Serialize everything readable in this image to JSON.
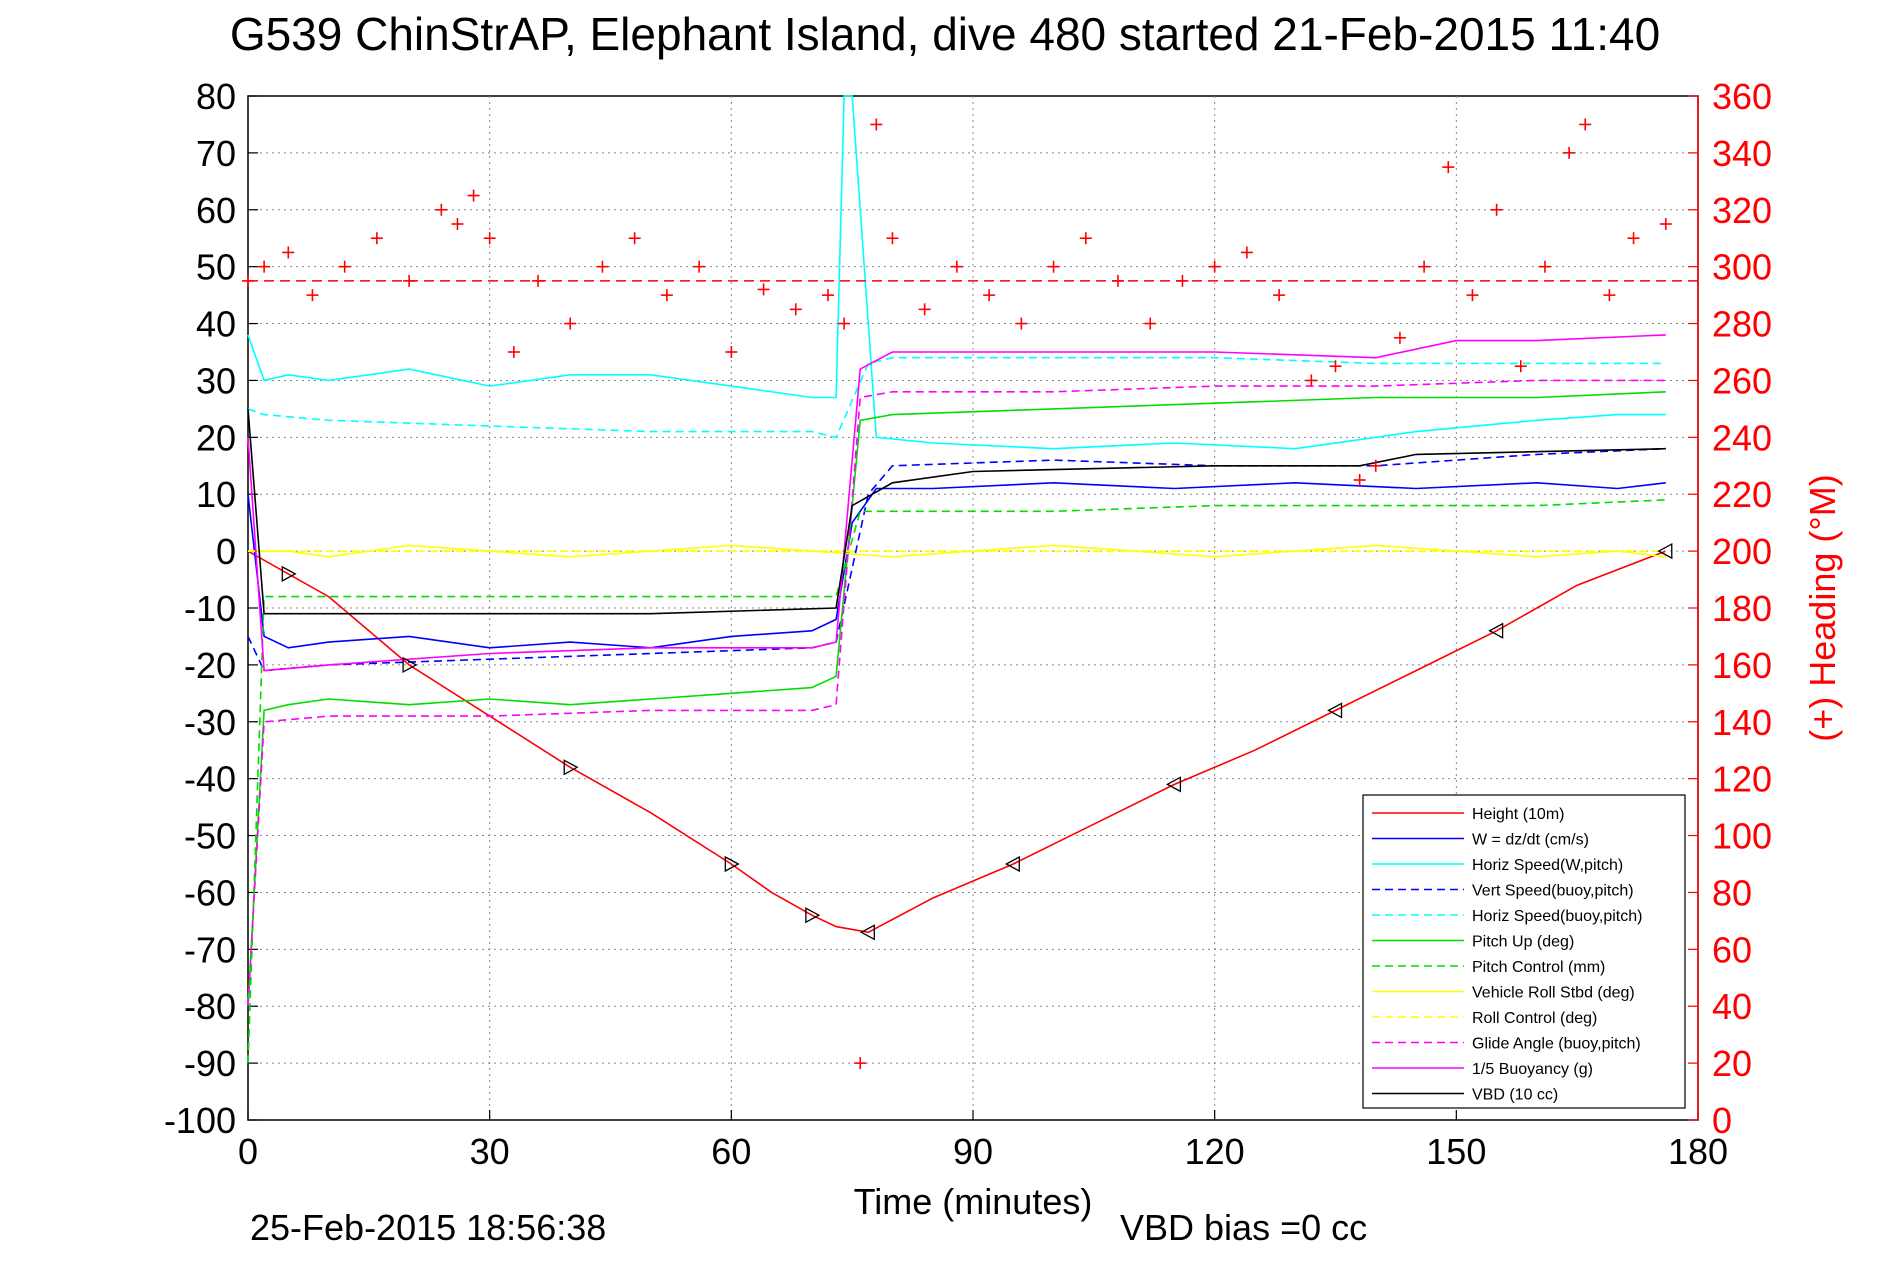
{
  "figure": {
    "title": "G539 ChinStrAP, Elephant Island, dive 480 started 21-Feb-2015 11:40",
    "timestamp": "25-Feb-2015 18:56:38",
    "vbd_bias": "VBD bias =0 cc"
  },
  "chart_data": {
    "type": "line",
    "title": "G539 ChinStrAP, Elephant Island, dive 480 started 21-Feb-2015 11:40",
    "xlabel": "Time (minutes)",
    "ylabel_left": "",
    "ylabel_right": "(+) Heading (°M)",
    "xlim": [
      0,
      180
    ],
    "ylim_left": [
      -100,
      80
    ],
    "ylim_right": [
      0,
      360
    ],
    "x_ticks": [
      "0",
      "30",
      "60",
      "90",
      "120",
      "150",
      "180"
    ],
    "y_ticks_left": [
      "80",
      "70",
      "60",
      "50",
      "40",
      "30",
      "20",
      "10",
      "0",
      "-10",
      "-20",
      "-30",
      "-40",
      "-50",
      "-60",
      "-70",
      "-80",
      "-90",
      "-100"
    ],
    "y_ticks_right": [
      "360",
      "340",
      "320",
      "300",
      "280",
      "260",
      "240",
      "220",
      "200",
      "180",
      "160",
      "140",
      "120",
      "100",
      "80",
      "60",
      "40",
      "20",
      "0"
    ],
    "grid": true,
    "legend_position": "bottom-right",
    "colors": {
      "red": "#ff0000",
      "blue": "#0000ff",
      "cyan": "#00ffff",
      "green": "#00dd00",
      "yellow": "#ffff00",
      "magenta": "#ff00ff",
      "black": "#000000"
    },
    "series": [
      {
        "name": "Height (10m)",
        "color": "#ff0000",
        "dash": "solid",
        "x": [
          0,
          5,
          10,
          20,
          30,
          40,
          50,
          60,
          65,
          70,
          73,
          77,
          85,
          95,
          105,
          115,
          125,
          135,
          145,
          155,
          165,
          176
        ],
        "y": [
          0,
          -4,
          -8,
          -20,
          -29,
          -38,
          -46,
          -55,
          -60,
          -64,
          -66,
          -67,
          -61,
          -55,
          -48,
          -41,
          -35,
          -28,
          -21,
          -14,
          -6,
          0
        ]
      },
      {
        "name": "W = dz/dt (cm/s)",
        "color": "#0000ff",
        "dash": "solid",
        "x": [
          0,
          2,
          5,
          10,
          20,
          30,
          40,
          50,
          60,
          70,
          73,
          75,
          78,
          85,
          100,
          115,
          130,
          145,
          160,
          170,
          176
        ],
        "y": [
          10,
          -15,
          -17,
          -16,
          -15,
          -17,
          -16,
          -17,
          -15,
          -14,
          -12,
          5,
          11,
          11,
          12,
          11,
          12,
          11,
          12,
          11,
          12
        ]
      },
      {
        "name": "Horiz Speed(W,pitch)",
        "color": "#00ffff",
        "dash": "solid",
        "x": [
          0,
          2,
          5,
          10,
          20,
          30,
          40,
          50,
          60,
          70,
          73,
          74,
          75,
          78,
          85,
          100,
          115,
          130,
          145,
          160,
          170,
          176
        ],
        "y": [
          38,
          30,
          31,
          30,
          32,
          29,
          31,
          31,
          29,
          27,
          27,
          80,
          80,
          20,
          19,
          18,
          19,
          18,
          21,
          23,
          24,
          24
        ]
      },
      {
        "name": "Vert Speed(buoy,pitch)",
        "color": "#0000ff",
        "dash": "dashed",
        "x": [
          0,
          2,
          10,
          30,
          50,
          70,
          73,
          77,
          80,
          100,
          120,
          140,
          160,
          176
        ],
        "y": [
          -15,
          -21,
          -20,
          -19,
          -18,
          -17,
          -16,
          10,
          15,
          16,
          15,
          15,
          17,
          18
        ]
      },
      {
        "name": "Horiz Speed(buoy,pitch)",
        "color": "#00ffff",
        "dash": "dashed",
        "x": [
          0,
          2,
          10,
          30,
          50,
          70,
          73,
          77,
          80,
          100,
          120,
          140,
          160,
          176
        ],
        "y": [
          25,
          24,
          23,
          22,
          21,
          21,
          20,
          33,
          34,
          34,
          34,
          33,
          33,
          33
        ]
      },
      {
        "name": "Pitch Up (deg)",
        "color": "#00dd00",
        "dash": "solid",
        "x": [
          0,
          2,
          5,
          10,
          20,
          30,
          40,
          50,
          60,
          70,
          73,
          76,
          80,
          100,
          120,
          140,
          160,
          176
        ],
        "y": [
          -80,
          -28,
          -27,
          -26,
          -27,
          -26,
          -27,
          -26,
          -25,
          -24,
          -22,
          23,
          24,
          25,
          26,
          27,
          27,
          28
        ]
      },
      {
        "name": "Pitch Control (mm)",
        "color": "#00dd00",
        "dash": "dashed",
        "x": [
          0,
          2,
          10,
          30,
          50,
          70,
          73,
          76,
          80,
          100,
          120,
          140,
          160,
          176
        ],
        "y": [
          -90,
          -8,
          -8,
          -8,
          -8,
          -8,
          -8,
          7,
          7,
          7,
          8,
          8,
          8,
          9
        ]
      },
      {
        "name": "Vehicle Roll Stbd (deg)",
        "color": "#ffff00",
        "dash": "solid",
        "x": [
          0,
          5,
          10,
          20,
          30,
          40,
          50,
          60,
          70,
          80,
          90,
          100,
          110,
          120,
          130,
          140,
          150,
          160,
          170,
          176
        ],
        "y": [
          0,
          0,
          -1,
          1,
          0,
          -1,
          0,
          1,
          0,
          -1,
          0,
          1,
          0,
          -1,
          0,
          1,
          0,
          -1,
          0,
          -1
        ]
      },
      {
        "name": "Roll Control (deg)",
        "color": "#ffff00",
        "dash": "dashed",
        "x": [
          0,
          10,
          30,
          60,
          90,
          120,
          150,
          176
        ],
        "y": [
          0,
          0,
          0,
          0,
          0,
          0,
          0,
          0
        ]
      },
      {
        "name": "Glide Angle (buoy,pitch)",
        "color": "#ff00ff",
        "dash": "dashed",
        "x": [
          0,
          2,
          10,
          30,
          50,
          70,
          73,
          76,
          80,
          100,
          120,
          140,
          160,
          176
        ],
        "y": [
          -80,
          -30,
          -29,
          -29,
          -28,
          -28,
          -27,
          27,
          28,
          28,
          29,
          29,
          30,
          30
        ]
      },
      {
        "name": "1/5 Buoyancy (g)",
        "color": "#ff00ff",
        "dash": "solid",
        "x": [
          0,
          2,
          10,
          30,
          50,
          70,
          73,
          76,
          80,
          100,
          120,
          140,
          150,
          160,
          176
        ],
        "y": [
          20,
          -21,
          -20,
          -18,
          -17,
          -17,
          -16,
          32,
          35,
          35,
          35,
          34,
          37,
          37,
          38
        ]
      },
      {
        "name": "VBD (10 cc)",
        "color": "#000000",
        "dash": "solid",
        "x": [
          0,
          2,
          10,
          30,
          50,
          73,
          75,
          80,
          90,
          120,
          138,
          145,
          176
        ],
        "y": [
          25,
          -11,
          -11,
          -11,
          -11,
          -10,
          8,
          12,
          14,
          15,
          15,
          17,
          18
        ]
      }
    ],
    "heading_series": {
      "name": "(+) Heading (°M)",
      "axis": "right",
      "color": "#ff0000",
      "marker": "+",
      "reference_line": 295,
      "x": [
        0,
        2,
        5,
        8,
        12,
        16,
        20,
        24,
        26,
        28,
        30,
        33,
        36,
        40,
        44,
        48,
        52,
        56,
        60,
        64,
        68,
        72,
        74,
        76,
        78,
        80,
        84,
        88,
        92,
        96,
        100,
        104,
        108,
        112,
        116,
        120,
        124,
        128,
        132,
        135,
        138,
        140,
        143,
        146,
        149,
        152,
        155,
        158,
        161,
        164,
        166,
        169,
        172,
        176
      ],
      "y": [
        295,
        300,
        305,
        290,
        300,
        310,
        295,
        320,
        315,
        325,
        310,
        270,
        295,
        280,
        300,
        310,
        290,
        300,
        270,
        292,
        285,
        290,
        280,
        20,
        350,
        310,
        285,
        300,
        290,
        280,
        300,
        310,
        295,
        280,
        295,
        300,
        305,
        290,
        260,
        265,
        225,
        230,
        275,
        300,
        335,
        290,
        320,
        265,
        300,
        340,
        350,
        290,
        310,
        315
      ]
    }
  }
}
